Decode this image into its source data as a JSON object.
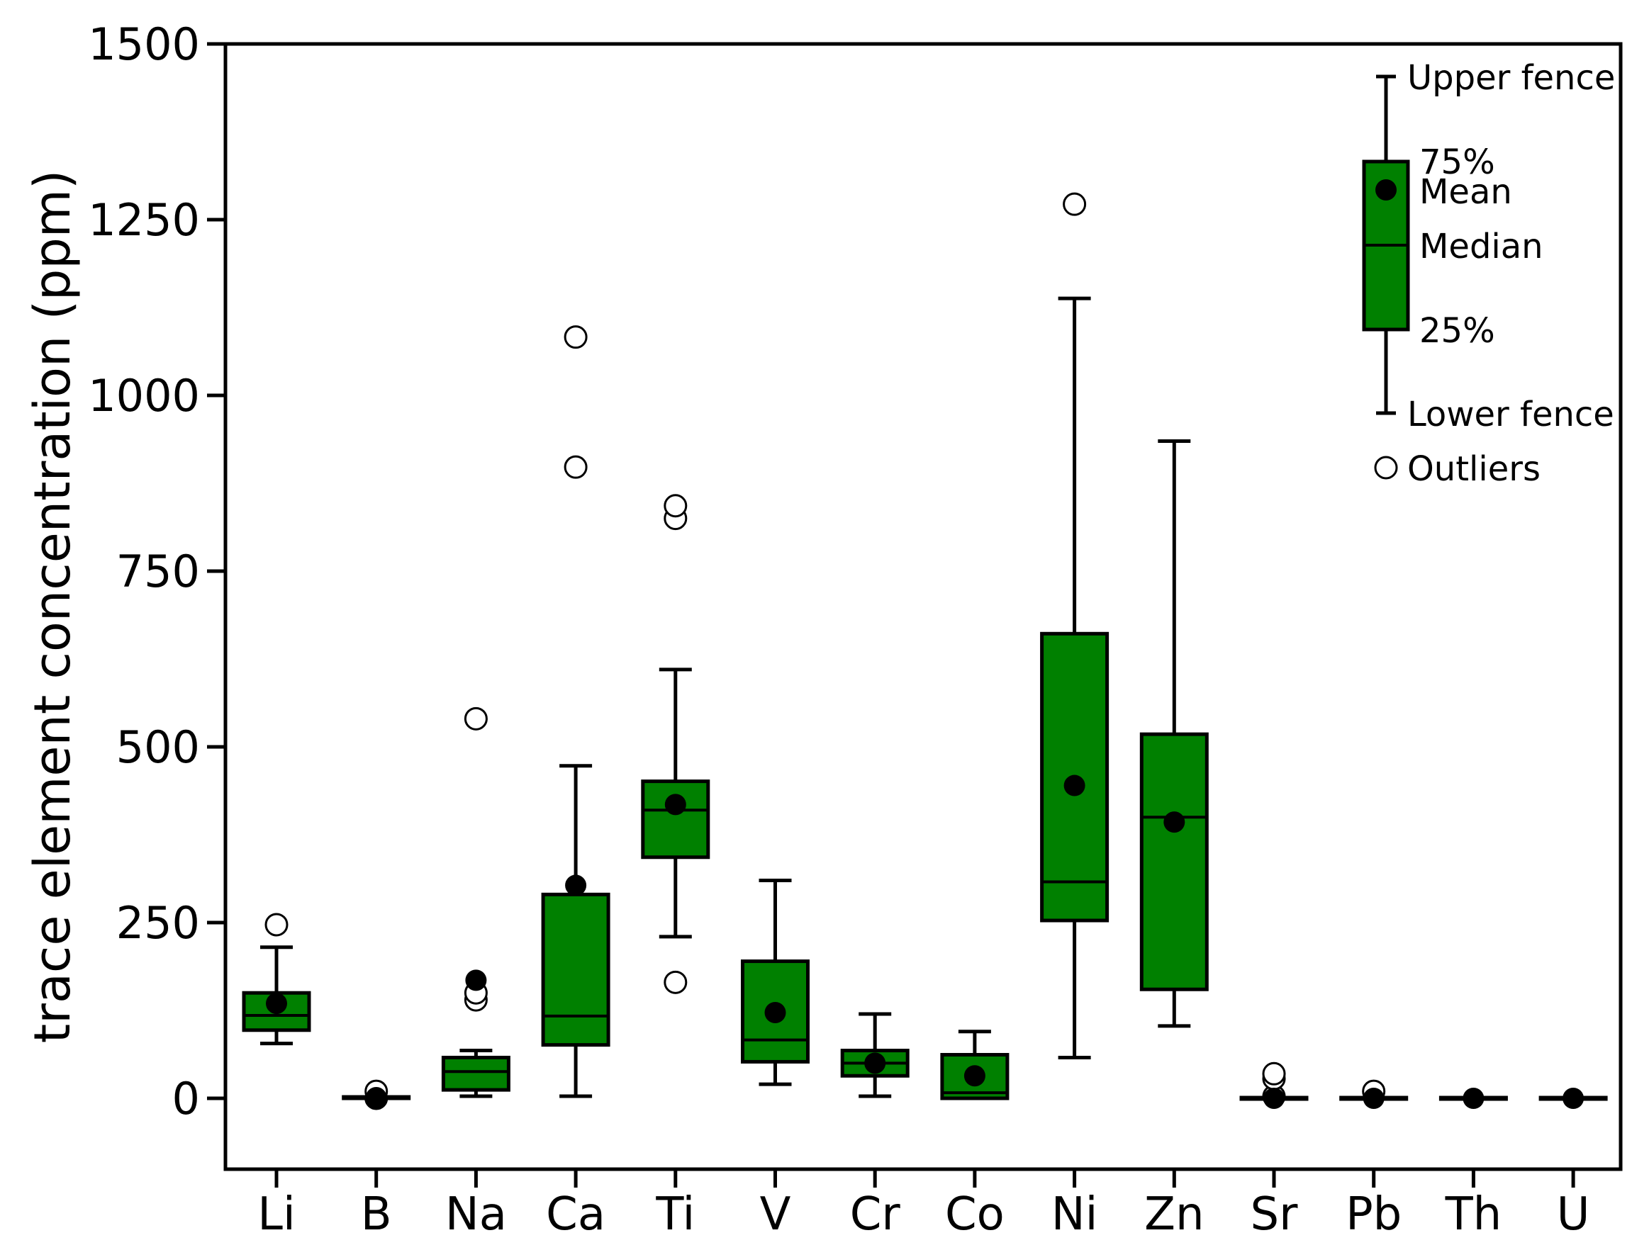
{
  "chart_data": {
    "type": "box",
    "ylabel": "trace element concentration (ppm)",
    "ylim": [
      -100,
      1500
    ],
    "yticks": [
      "0",
      "250",
      "500",
      "750",
      "1000",
      "1250",
      "1500"
    ],
    "ytick_values": [
      0,
      250,
      500,
      750,
      1000,
      1250,
      1500
    ],
    "grid": false,
    "legend_position": "top-right",
    "colors": {
      "box_fill": "#008000",
      "stroke": "#000000",
      "mean": "#000000",
      "outlier_fill": "#ffffff"
    },
    "categories": [
      "Li",
      "B",
      "Na",
      "Ca",
      "Ti",
      "V",
      "Cr",
      "Co",
      "Ni",
      "Zn",
      "Sr",
      "Pb",
      "Th",
      "U"
    ],
    "boxes": [
      {
        "name": "Li",
        "lower_fence": 78,
        "q1": 97,
        "median": 118,
        "q3": 150,
        "upper_fence": 215,
        "mean": 135,
        "outliers": [
          247
        ]
      },
      {
        "name": "B",
        "lower_fence": 0,
        "q1": 0,
        "median": 0,
        "q3": 2,
        "upper_fence": 2,
        "mean": 1,
        "outliers": [
          0,
          10
        ]
      },
      {
        "name": "Na",
        "lower_fence": 3,
        "q1": 12,
        "median": 38,
        "q3": 58,
        "upper_fence": 68,
        "mean": 168,
        "outliers": [
          140,
          150,
          540
        ]
      },
      {
        "name": "Ca",
        "lower_fence": 3,
        "q1": 76,
        "median": 117,
        "q3": 290,
        "upper_fence": 473,
        "mean": 303,
        "outliers": [
          898,
          1083
        ]
      },
      {
        "name": "Ti",
        "lower_fence": 230,
        "q1": 343,
        "median": 410,
        "q3": 451,
        "upper_fence": 610,
        "mean": 418,
        "outliers": [
          165,
          825,
          843
        ]
      },
      {
        "name": "V",
        "lower_fence": 20,
        "q1": 52,
        "median": 83,
        "q3": 195,
        "upper_fence": 310,
        "mean": 122,
        "outliers": []
      },
      {
        "name": "Cr",
        "lower_fence": 3,
        "q1": 32,
        "median": 50,
        "q3": 68,
        "upper_fence": 120,
        "mean": 50,
        "outliers": []
      },
      {
        "name": "Co",
        "lower_fence": 0,
        "q1": 0,
        "median": 8,
        "q3": 62,
        "upper_fence": 95,
        "mean": 32,
        "outliers": []
      },
      {
        "name": "Ni",
        "lower_fence": 58,
        "q1": 253,
        "median": 308,
        "q3": 661,
        "upper_fence": 1138,
        "mean": 445,
        "outliers": [
          1272
        ]
      },
      {
        "name": "Zn",
        "lower_fence": 103,
        "q1": 155,
        "median": 400,
        "q3": 518,
        "upper_fence": 935,
        "mean": 393,
        "outliers": []
      },
      {
        "name": "Sr",
        "lower_fence": 0,
        "q1": 0,
        "median": 0,
        "q3": 1,
        "upper_fence": 1,
        "mean": 0,
        "outliers": [
          3,
          28,
          35
        ]
      },
      {
        "name": "Pb",
        "lower_fence": 0,
        "q1": 0,
        "median": 0,
        "q3": 1,
        "upper_fence": 1,
        "mean": 0,
        "outliers": [
          10
        ]
      },
      {
        "name": "Th",
        "lower_fence": 0,
        "q1": 0,
        "median": 0,
        "q3": 1,
        "upper_fence": 1,
        "mean": 0,
        "outliers": []
      },
      {
        "name": "U",
        "lower_fence": 0,
        "q1": 0,
        "median": 0,
        "q3": 1,
        "upper_fence": 1,
        "mean": 0,
        "outliers": []
      }
    ]
  },
  "legend": {
    "upper_fence": "Upper fence",
    "q3": "75%",
    "mean": "Mean",
    "median": "Median",
    "q1": "25%",
    "lower_fence": "Lower fence",
    "outliers": "Outliers"
  }
}
